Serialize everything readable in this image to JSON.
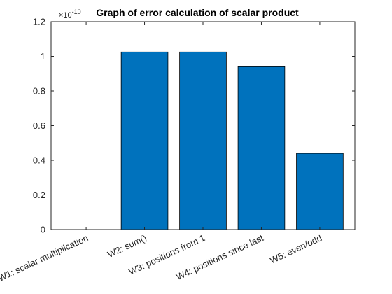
{
  "chart_data": {
    "type": "bar",
    "title": "Graph of error calculation of scalar product",
    "xlabel": "",
    "ylabel": "",
    "categories": [
      "W1: scalar multiplication",
      "W2: sum()",
      "W3: positions from 1",
      "W4: positions since last",
      "W5: even/odd"
    ],
    "values": [
      0,
      1.025,
      1.025,
      0.94,
      0.44
    ],
    "ylim": [
      0,
      1.2
    ],
    "yticks": [
      0,
      0.2,
      0.4,
      0.6,
      0.8,
      1,
      1.2
    ],
    "ytick_labels": [
      "0",
      "0.2",
      "0.4",
      "0.6",
      "0.8",
      "1",
      "1.2"
    ],
    "y_multiplier": "×10",
    "y_exponent": "-10",
    "bar_color": "#0072BD",
    "grid": false,
    "legend": "none"
  }
}
